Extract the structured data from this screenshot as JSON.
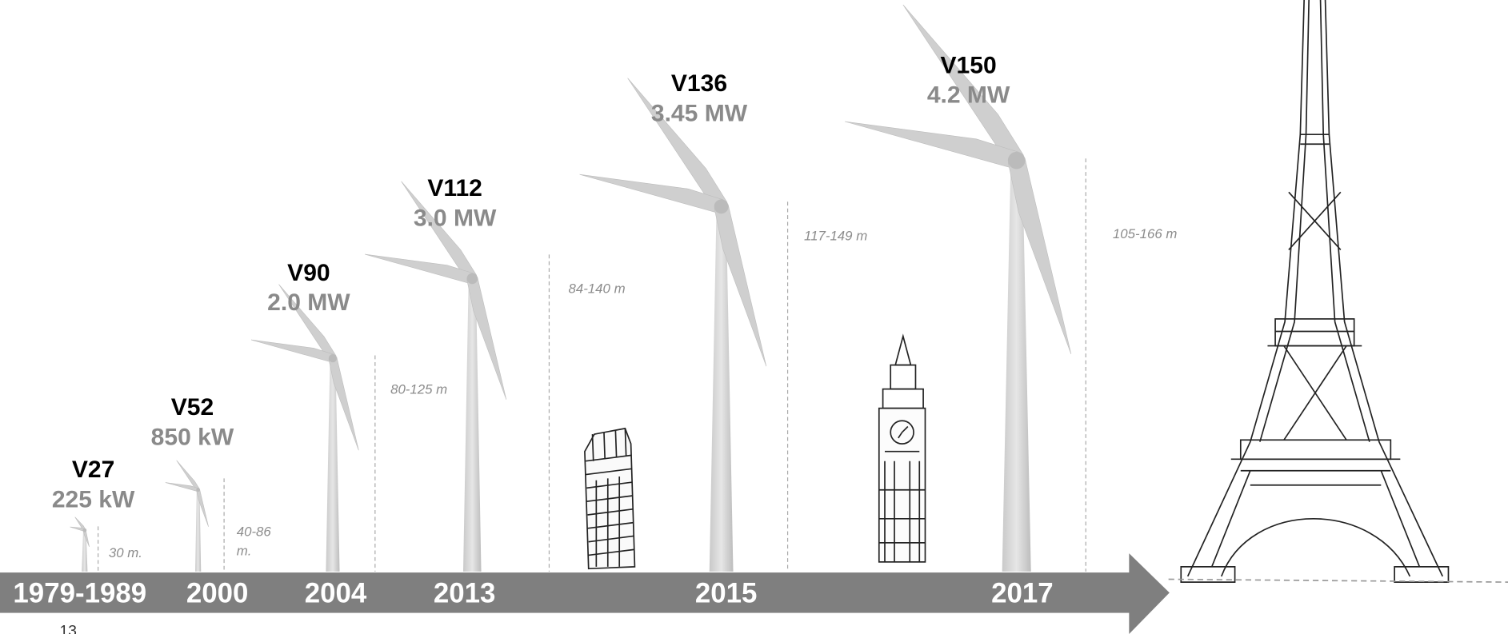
{
  "turbines": [
    {
      "model": "V27",
      "power": "225 kW",
      "year": "1979-1989",
      "height": "30 m."
    },
    {
      "model": "V52",
      "power": "850 kW",
      "year": "2000",
      "height": "40-86 m."
    },
    {
      "model": "V90",
      "power": "2.0 MW",
      "year": "2004",
      "height": "80-125 m"
    },
    {
      "model": "V112",
      "power": "3.0 MW",
      "year": "2013",
      "height": "84-140 m"
    },
    {
      "model": "V136",
      "power": "3.45 MW",
      "year": "2015",
      "height": "117-149 m"
    },
    {
      "model": "V150",
      "power": "4.2 MW",
      "year": "2017",
      "height": "105-166 m"
    }
  ],
  "page_number": "13"
}
